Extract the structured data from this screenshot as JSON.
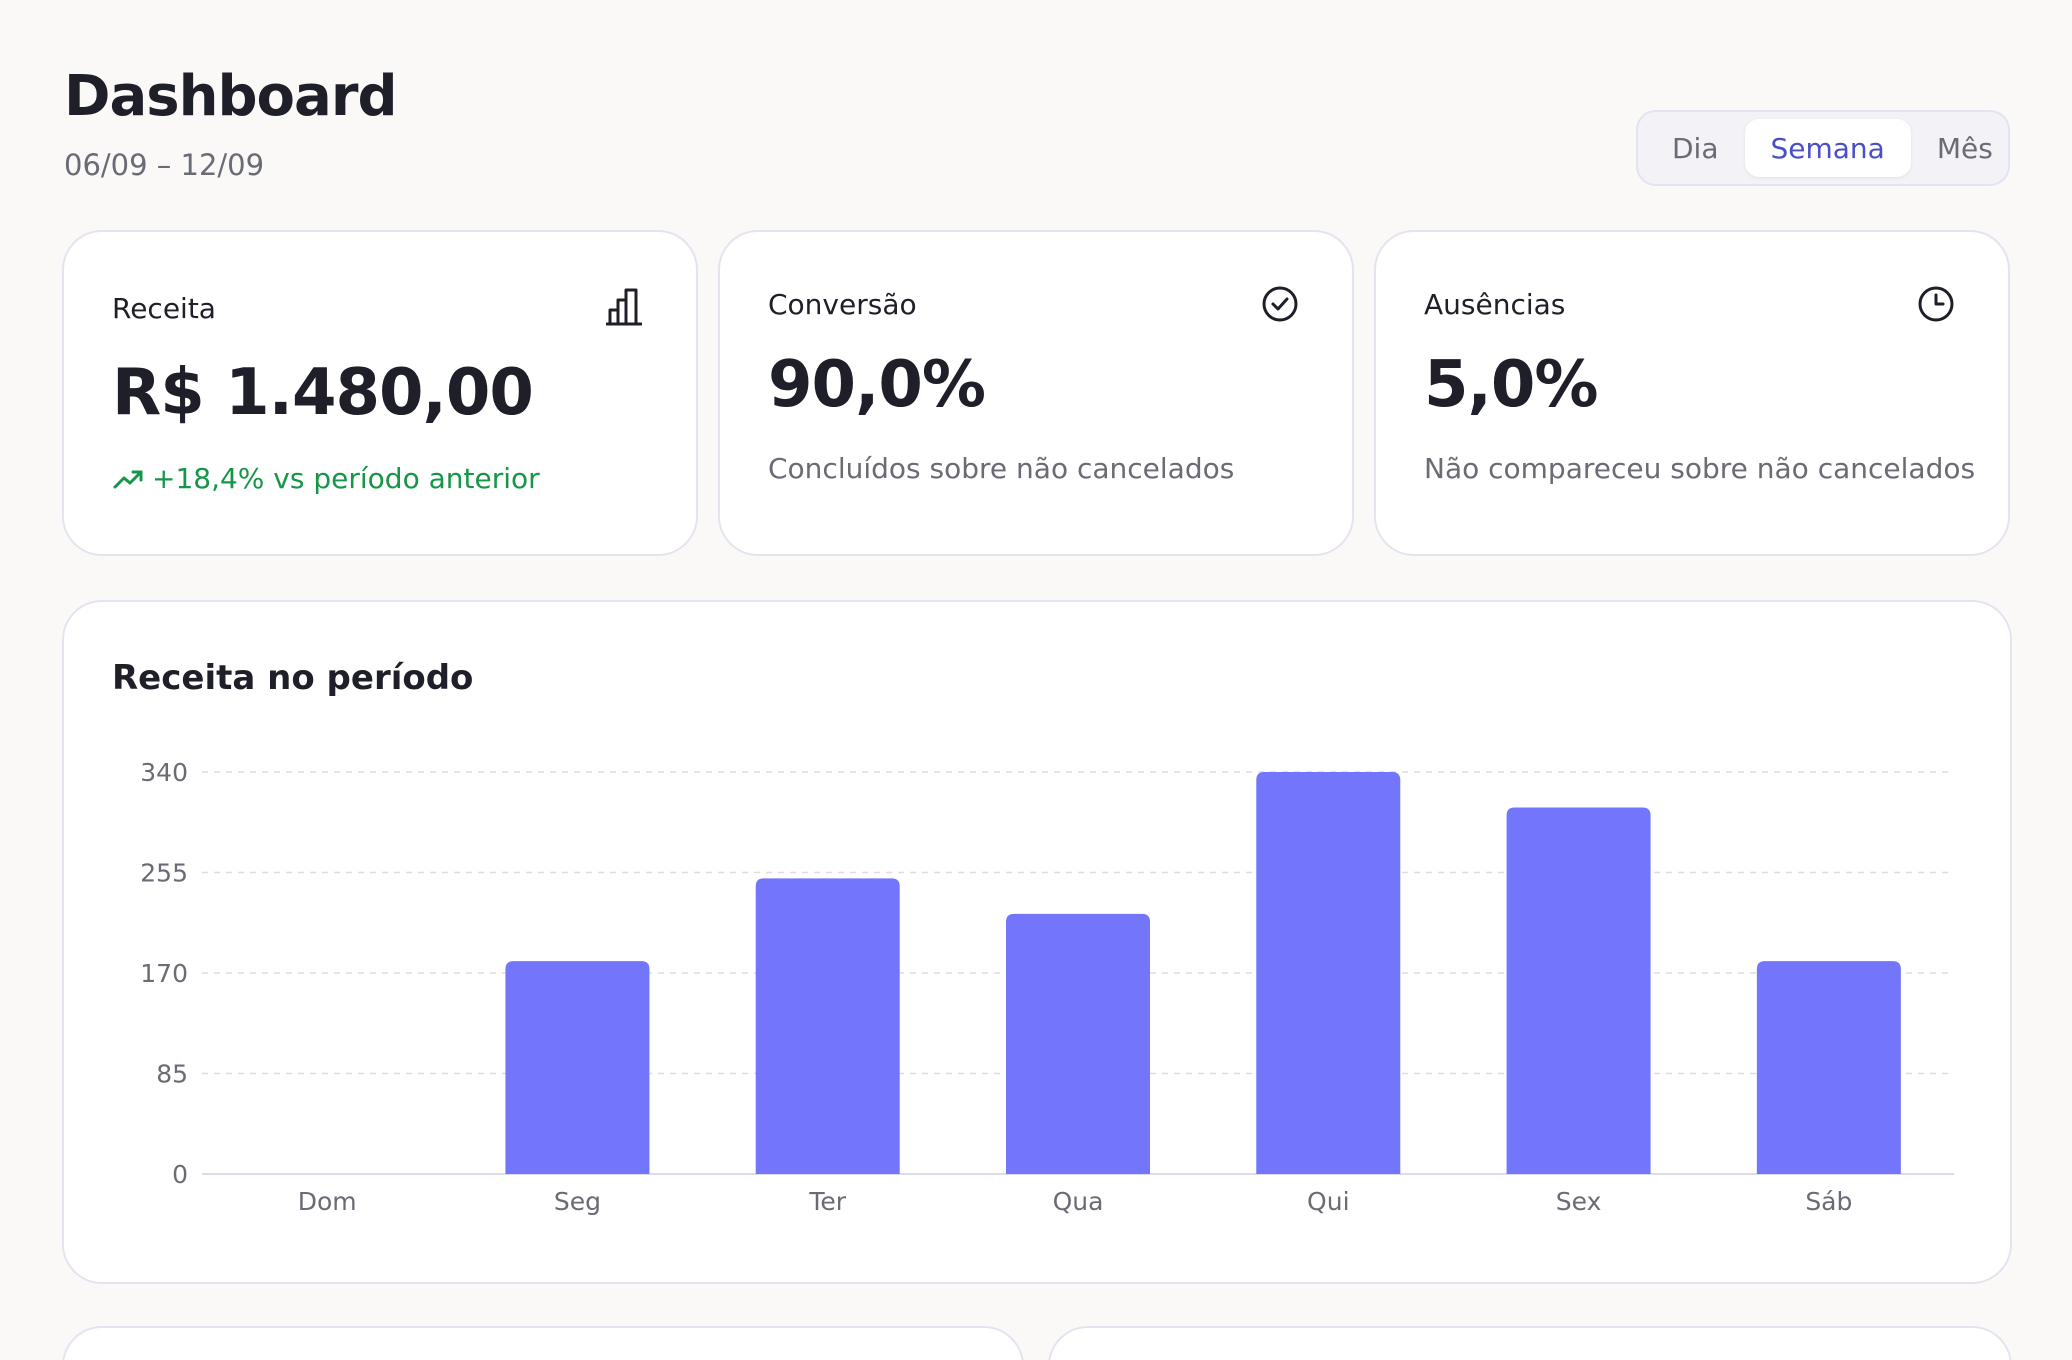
{
  "header": {
    "title": "Dashboard",
    "date_range": "06/09 – 12/09"
  },
  "period_toggle": {
    "options": [
      "Dia",
      "Semana",
      "Mês"
    ],
    "selected": "Semana"
  },
  "stats": [
    {
      "label": "Receita",
      "icon": "bar-chart-icon",
      "value": "R$ 1.480,00",
      "trend": "+18,4% vs período anterior",
      "trend_icon": "trending-up-icon",
      "trend_color": "#169646"
    },
    {
      "label": "Conversão",
      "icon": "check-circle-icon",
      "value": "90,0%",
      "subtitle": "Concluídos sobre não cancelados"
    },
    {
      "label": "Ausências",
      "icon": "clock-icon",
      "value": "5,0%",
      "subtitle": "Não compareceu sobre não cancelados"
    }
  ],
  "colors": {
    "accent": "#4a4fc9",
    "bar": "#7375fb",
    "positive": "#169646",
    "border": "#e4e3ef",
    "background": "#faf9f8"
  },
  "chart_data": {
    "type": "bar",
    "title": "Receita no período",
    "categories": [
      "Dom",
      "Seg",
      "Ter",
      "Qua",
      "Qui",
      "Sex",
      "Sáb"
    ],
    "values": [
      0,
      180,
      250,
      220,
      340,
      310,
      180
    ],
    "yticks": [
      0,
      85,
      170,
      255,
      340
    ],
    "ylim": [
      0,
      340
    ],
    "grid": true,
    "xlabel": "",
    "ylabel": ""
  }
}
